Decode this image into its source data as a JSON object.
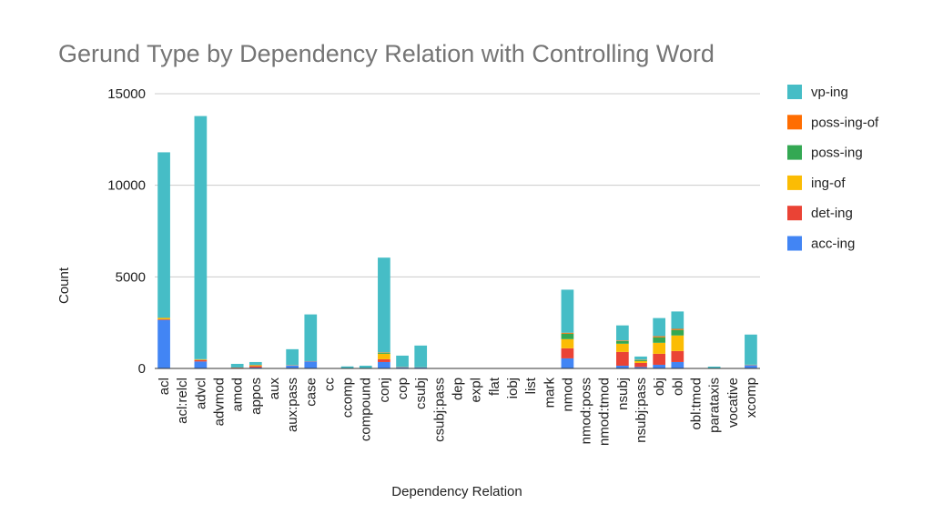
{
  "chart_data": {
    "type": "bar",
    "stacked": true,
    "title": "Gerund Type by Dependency Relation with Controlling Word",
    "xlabel": "Dependency Relation",
    "ylabel": "Count",
    "ylim": [
      0,
      15000
    ],
    "yticks": [
      0,
      5000,
      10000,
      15000
    ],
    "grid": true,
    "legend_position": "right",
    "categories": [
      "acl",
      "acl:relcl",
      "advcl",
      "advmod",
      "amod",
      "appos",
      "aux",
      "aux:pass",
      "case",
      "cc",
      "ccomp",
      "compound",
      "conj",
      "cop",
      "csubj",
      "csubj:pass",
      "dep",
      "expl",
      "flat",
      "iobj",
      "list",
      "mark",
      "nmod",
      "nmod:poss",
      "nmod:tmod",
      "nsubj",
      "nsubj:pass",
      "obj",
      "obl",
      "obl:tmod",
      "parataxis",
      "vocative",
      "xcomp"
    ],
    "series": [
      {
        "name": "acc-ing",
        "color": "#4285f4",
        "values": [
          2650,
          0,
          380,
          0,
          30,
          50,
          0,
          160,
          380,
          0,
          10,
          15,
          350,
          60,
          50,
          0,
          0,
          0,
          0,
          0,
          0,
          0,
          550,
          0,
          0,
          150,
          80,
          200,
          350,
          0,
          10,
          0,
          180
        ]
      },
      {
        "name": "det-ing",
        "color": "#ea4335",
        "values": [
          30,
          0,
          80,
          0,
          15,
          80,
          0,
          10,
          10,
          0,
          0,
          5,
          150,
          10,
          5,
          0,
          0,
          0,
          0,
          0,
          0,
          0,
          550,
          0,
          0,
          750,
          220,
          600,
          600,
          0,
          0,
          0,
          10
        ]
      },
      {
        "name": "ing-of",
        "color": "#fbbc04",
        "values": [
          70,
          0,
          30,
          0,
          5,
          40,
          0,
          10,
          5,
          0,
          0,
          5,
          300,
          5,
          5,
          0,
          0,
          0,
          0,
          0,
          0,
          0,
          500,
          0,
          0,
          450,
          100,
          600,
          850,
          0,
          0,
          0,
          10
        ]
      },
      {
        "name": "poss-ing",
        "color": "#34a853",
        "values": [
          20,
          0,
          10,
          0,
          5,
          20,
          0,
          5,
          5,
          0,
          0,
          0,
          60,
          5,
          5,
          0,
          0,
          0,
          0,
          0,
          0,
          0,
          300,
          0,
          0,
          150,
          60,
          300,
          300,
          0,
          0,
          0,
          10
        ]
      },
      {
        "name": "poss-ing-of",
        "color": "#ff6d01",
        "values": [
          10,
          0,
          5,
          0,
          0,
          10,
          0,
          0,
          0,
          0,
          0,
          0,
          20,
          0,
          0,
          0,
          0,
          0,
          0,
          0,
          0,
          0,
          50,
          0,
          0,
          30,
          20,
          60,
          60,
          0,
          0,
          0,
          0
        ]
      },
      {
        "name": "vp-ing",
        "color": "#46bdc6",
        "values": [
          9020,
          0,
          13275,
          0,
          195,
          150,
          0,
          865,
          2550,
          0,
          100,
          125,
          5170,
          620,
          1185,
          0,
          0,
          0,
          0,
          0,
          0,
          0,
          2350,
          0,
          0,
          820,
          170,
          990,
          950,
          0,
          90,
          0,
          1640
        ]
      }
    ],
    "legend_order": [
      "vp-ing",
      "poss-ing-of",
      "poss-ing",
      "ing-of",
      "det-ing",
      "acc-ing"
    ]
  }
}
